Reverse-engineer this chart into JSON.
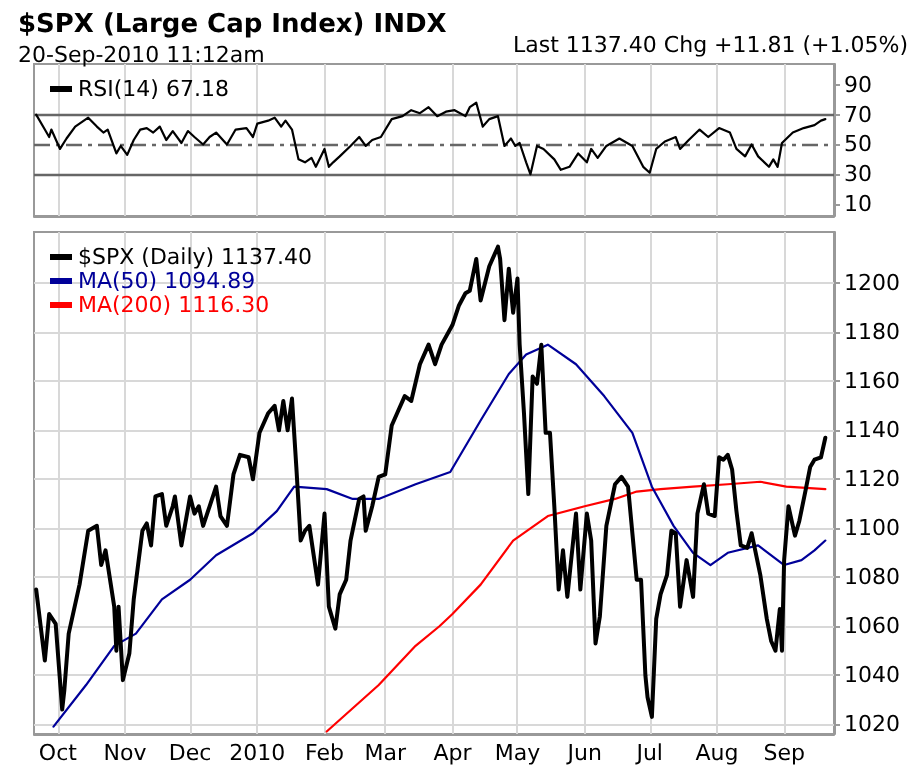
{
  "chart_data": [
    {
      "type": "line",
      "title": "$SPX (Large Cap Index) INDX",
      "subtitle": "20-Sep-2010 11:12am",
      "annotations": [
        "Last 1137.40 Chg +11.81 (+1.05%)"
      ],
      "legend": "top left",
      "grid": "x",
      "tick_labels": "y",
      "xlim": [
        "2009-09-20",
        "2010-09-24"
      ],
      "xticks": [
        {
          "value": "2009-10-01",
          "label": null
        },
        {
          "value": "2009-11-01",
          "label": null
        },
        {
          "value": "2009-12-01",
          "label": null
        },
        {
          "value": "2010-01-01",
          "label": null
        },
        {
          "value": "2010-02-01",
          "label": null
        },
        {
          "value": "2010-03-01",
          "label": null
        },
        {
          "value": "2010-04-01",
          "label": null
        },
        {
          "value": "2010-05-01",
          "label": null
        },
        {
          "value": "2010-06-01",
          "label": null
        },
        {
          "value": "2010-07-01",
          "label": null
        },
        {
          "value": "2010-08-01",
          "label": null
        },
        {
          "value": "2010-09-01",
          "label": null
        }
      ],
      "ylim": [
        2,
        104
      ],
      "yticks": [
        10,
        30,
        50,
        70,
        90
      ],
      "ref_lines": [
        {
          "axis": "y",
          "value": 70,
          "color": "#666666",
          "line_style": "solid"
        },
        {
          "axis": "y",
          "value": 50,
          "color": "#666666",
          "line_style": "dashed"
        },
        {
          "axis": "y",
          "value": 30,
          "color": "#666666",
          "line_style": "solid"
        }
      ],
      "series": [
        {
          "name": "RSI(14) 67.18",
          "color": "#000000",
          "x": [
            "2009-09-21",
            "2009-09-25",
            "2009-09-27",
            "2009-09-28",
            "2009-10-02",
            "2009-10-05",
            "2009-10-09",
            "2009-10-15",
            "2009-10-19",
            "2009-10-22",
            "2009-10-24",
            "2009-10-28",
            "2009-10-30",
            "2009-11-02",
            "2009-11-05",
            "2009-11-08",
            "2009-11-11",
            "2009-11-14",
            "2009-11-17",
            "2009-11-20",
            "2009-11-23",
            "2009-11-27",
            "2009-11-30",
            "2009-12-03",
            "2009-12-07",
            "2009-12-10",
            "2009-12-13",
            "2009-12-18",
            "2009-12-22",
            "2009-12-27",
            "2009-12-30",
            "2010-01-01",
            "2010-01-06",
            "2010-01-09",
            "2010-01-12",
            "2010-01-14",
            "2010-01-17",
            "2010-01-20",
            "2010-01-23",
            "2010-01-26",
            "2010-01-28",
            "2010-02-01",
            "2010-02-03",
            "2010-02-05",
            "2010-02-08",
            "2010-02-13",
            "2010-02-17",
            "2010-02-20",
            "2010-02-23",
            "2010-02-27",
            "2010-03-04",
            "2010-03-09",
            "2010-03-13",
            "2010-03-17",
            "2010-03-21",
            "2010-03-25",
            "2010-03-29",
            "2010-04-02",
            "2010-04-07",
            "2010-04-09",
            "2010-04-12",
            "2010-04-15",
            "2010-04-18",
            "2010-04-22",
            "2010-04-25",
            "2010-04-28",
            "2010-04-30",
            "2010-05-02",
            "2010-05-05",
            "2010-05-07",
            "2010-05-10",
            "2010-05-13",
            "2010-05-18",
            "2010-05-21",
            "2010-05-25",
            "2010-05-29",
            "2010-06-02",
            "2010-06-04",
            "2010-06-07",
            "2010-06-11",
            "2010-06-17",
            "2010-06-23",
            "2010-06-28",
            "2010-07-01",
            "2010-07-04",
            "2010-07-08",
            "2010-07-13",
            "2010-07-15",
            "2010-07-19",
            "2010-07-24",
            "2010-07-28",
            "2010-08-02",
            "2010-08-07",
            "2010-08-10",
            "2010-08-14",
            "2010-08-17",
            "2010-08-20",
            "2010-08-25",
            "2010-08-27",
            "2010-08-29",
            "2010-08-31",
            "2010-09-05",
            "2010-09-10",
            "2010-09-15",
            "2010-09-18",
            "2010-09-20"
          ],
          "values": [
            70,
            60,
            55,
            60,
            47,
            54,
            62,
            68,
            62,
            58,
            60,
            44,
            49,
            43,
            53,
            60,
            61,
            58,
            62,
            53,
            59,
            51,
            59,
            55,
            50,
            55,
            58,
            50,
            60,
            61,
            55,
            64,
            66,
            68,
            62,
            66,
            60,
            40,
            38,
            41,
            35,
            47,
            35,
            38,
            42,
            49,
            55,
            49,
            53,
            55,
            67,
            69,
            73,
            71,
            75,
            69,
            72,
            73,
            69,
            75,
            78,
            62,
            67,
            69,
            49,
            54,
            49,
            51,
            38,
            30,
            49,
            47,
            40,
            33,
            35,
            44,
            38,
            47,
            41,
            49,
            54,
            49,
            35,
            31,
            47,
            52,
            55,
            47,
            53,
            60,
            55,
            61,
            58,
            47,
            42,
            50,
            42,
            35,
            40,
            35,
            51,
            58,
            61,
            63,
            66,
            67
          ]
        }
      ]
    },
    {
      "type": "line",
      "legend": "top left",
      "grid": true,
      "xlim": [
        "2009-09-20",
        "2010-09-24"
      ],
      "xticks": [
        {
          "value": "2009-10-01",
          "label": "Oct"
        },
        {
          "value": "2009-11-01",
          "label": "Nov"
        },
        {
          "value": "2009-12-01",
          "label": "Dec"
        },
        {
          "value": "2010-01-01",
          "label": "2010"
        },
        {
          "value": "2010-02-01",
          "label": "Feb"
        },
        {
          "value": "2010-03-01",
          "label": "Mar"
        },
        {
          "value": "2010-04-01",
          "label": "Apr"
        },
        {
          "value": "2010-05-01",
          "label": "May"
        },
        {
          "value": "2010-06-01",
          "label": "Jun"
        },
        {
          "value": "2010-07-01",
          "label": "Jul"
        },
        {
          "value": "2010-08-01",
          "label": "Aug"
        },
        {
          "value": "2010-09-01",
          "label": "Sep"
        }
      ],
      "ylim": [
        1016,
        1221
      ],
      "yticks": [
        1020,
        1040,
        1060,
        1080,
        1100,
        1120,
        1140,
        1160,
        1180,
        1200
      ],
      "series": [
        {
          "name": "$SPX (Daily) 1137.40",
          "color": "#000000",
          "x": [
            "2009-09-21",
            "2009-09-25",
            "2009-09-27",
            "2009-09-30",
            "2009-10-03",
            "2009-10-04",
            "2009-10-06",
            "2009-10-11",
            "2009-10-15",
            "2009-10-19",
            "2009-10-21",
            "2009-10-23",
            "2009-10-27",
            "2009-10-28",
            "2009-10-29",
            "2009-10-31",
            "2009-11-03",
            "2009-11-05",
            "2009-11-09",
            "2009-11-11",
            "2009-11-13",
            "2009-11-15",
            "2009-11-18",
            "2009-11-20",
            "2009-11-23",
            "2009-11-24",
            "2009-11-27",
            "2009-12-01",
            "2009-12-03",
            "2009-12-05",
            "2009-12-07",
            "2009-12-10",
            "2009-12-13",
            "2009-12-15",
            "2009-12-18",
            "2009-12-21",
            "2009-12-24",
            "2009-12-28",
            "2009-12-30",
            "2010-01-02",
            "2010-01-06",
            "2010-01-09",
            "2010-01-11",
            "2010-01-13",
            "2010-01-15",
            "2010-01-17",
            "2010-01-19",
            "2010-01-21",
            "2010-01-23",
            "2010-01-25",
            "2010-01-29",
            "2010-02-01",
            "2010-02-03",
            "2010-02-06",
            "2010-02-08",
            "2010-02-11",
            "2010-02-13",
            "2010-02-17",
            "2010-02-19",
            "2010-02-20",
            "2010-02-23",
            "2010-02-26",
            "2010-03-01",
            "2010-03-04",
            "2010-03-07",
            "2010-03-10",
            "2010-03-13",
            "2010-03-17",
            "2010-03-21",
            "2010-03-24",
            "2010-03-27",
            "2010-04-01",
            "2010-04-04",
            "2010-04-07",
            "2010-04-09",
            "2010-04-12",
            "2010-04-14",
            "2010-04-18",
            "2010-04-22",
            "2010-04-23",
            "2010-04-25",
            "2010-04-27",
            "2010-04-29",
            "2010-05-01",
            "2010-05-02",
            "2010-05-04",
            "2010-05-06",
            "2010-05-08",
            "2010-05-10",
            "2010-05-12",
            "2010-05-14",
            "2010-05-16",
            "2010-05-18",
            "2010-05-20",
            "2010-05-22",
            "2010-05-24",
            "2010-05-28",
            "2010-05-30",
            "2010-06-02",
            "2010-06-04",
            "2010-06-06",
            "2010-06-08",
            "2010-06-11",
            "2010-06-15",
            "2010-06-18",
            "2010-06-21",
            "2010-06-23",
            "2010-06-25",
            "2010-06-27",
            "2010-06-29",
            "2010-06-30",
            "2010-07-02",
            "2010-07-04",
            "2010-07-06",
            "2010-07-09",
            "2010-07-11",
            "2010-07-13",
            "2010-07-15",
            "2010-07-18",
            "2010-07-21",
            "2010-07-23",
            "2010-07-26",
            "2010-07-28",
            "2010-07-31",
            "2010-08-02",
            "2010-08-04",
            "2010-08-06",
            "2010-08-08",
            "2010-08-10",
            "2010-08-12",
            "2010-08-15",
            "2010-08-17",
            "2010-08-21",
            "2010-08-24",
            "2010-08-26",
            "2010-08-28",
            "2010-08-30",
            "2010-08-31",
            "2010-09-01",
            "2010-09-03",
            "2010-09-06",
            "2010-09-08",
            "2010-09-11",
            "2010-09-13",
            "2010-09-15",
            "2010-09-18",
            "2010-09-20"
          ],
          "values": [
            1075,
            1046,
            1065,
            1061,
            1026,
            1034,
            1057,
            1077,
            1099,
            1101,
            1085,
            1091,
            1068,
            1050,
            1068,
            1038,
            1049,
            1071,
            1099,
            1102,
            1093,
            1113,
            1114,
            1101,
            1109,
            1113,
            1093,
            1113,
            1106,
            1109,
            1101,
            1109,
            1117,
            1105,
            1101,
            1122,
            1130,
            1129,
            1120,
            1139,
            1147,
            1150,
            1140,
            1152,
            1140,
            1153,
            1125,
            1095,
            1099,
            1101,
            1077,
            1106,
            1068,
            1059,
            1073,
            1079,
            1095,
            1112,
            1113,
            1099,
            1109,
            1121,
            1122,
            1142,
            1148,
            1154,
            1152,
            1167,
            1175,
            1167,
            1175,
            1183,
            1191,
            1196,
            1197,
            1210,
            1193,
            1207,
            1215,
            1210,
            1185,
            1206,
            1188,
            1202,
            1175,
            1147,
            1114,
            1162,
            1159,
            1175,
            1139,
            1139,
            1109,
            1075,
            1091,
            1072,
            1106,
            1075,
            1106,
            1095,
            1053,
            1064,
            1101,
            1118,
            1121,
            1117,
            1098,
            1079,
            1079,
            1040,
            1031,
            1023,
            1063,
            1073,
            1081,
            1099,
            1098,
            1068,
            1087,
            1072,
            1106,
            1118,
            1106,
            1105,
            1129,
            1128,
            1130,
            1124,
            1107,
            1093,
            1092,
            1098,
            1081,
            1063,
            1054,
            1050,
            1067,
            1050,
            1087,
            1109,
            1097,
            1103,
            1116,
            1125,
            1128,
            1129,
            1137
          ]
        },
        {
          "name": "MA(50) 1094.89",
          "color": "#000099",
          "x": [
            "2009-09-29",
            "2009-10-14",
            "2009-10-27",
            "2009-11-06",
            "2009-11-18",
            "2009-12-01",
            "2009-12-13",
            "2009-12-30",
            "2010-01-10",
            "2010-01-18",
            "2010-02-02",
            "2010-02-14",
            "2010-02-26",
            "2010-03-15",
            "2010-03-31",
            "2010-04-14",
            "2010-04-27",
            "2010-05-05",
            "2010-05-15",
            "2010-05-28",
            "2010-06-10",
            "2010-06-23",
            "2010-07-02",
            "2010-07-12",
            "2010-07-21",
            "2010-07-29",
            "2010-08-06",
            "2010-08-20",
            "2010-09-01",
            "2010-09-09",
            "2010-09-15",
            "2010-09-20"
          ],
          "values": [
            1019,
            1036,
            1052,
            1057,
            1071,
            1079,
            1089,
            1098,
            1107,
            1117,
            1116,
            1112,
            1112,
            1118,
            1123,
            1144,
            1163,
            1171,
            1175,
            1167,
            1154,
            1139,
            1117,
            1101,
            1090,
            1085,
            1090,
            1093,
            1085,
            1087,
            1091,
            1095
          ]
        },
        {
          "name": "MA(200) 1116.30",
          "color": "#ff0000",
          "x": [
            "2010-02-02",
            "2010-02-26",
            "2010-03-15",
            "2010-03-26",
            "2010-04-01",
            "2010-04-14",
            "2010-04-29",
            "2010-05-15",
            "2010-06-01",
            "2010-06-15",
            "2010-06-25",
            "2010-07-06",
            "2010-07-21",
            "2010-08-06",
            "2010-08-21",
            "2010-09-02",
            "2010-09-20"
          ],
          "values": [
            1017,
            1036,
            1052,
            1060,
            1065,
            1077,
            1095,
            1105,
            1109,
            1112,
            1115,
            1116,
            1117,
            1118,
            1119,
            1117,
            1116
          ]
        }
      ]
    }
  ]
}
